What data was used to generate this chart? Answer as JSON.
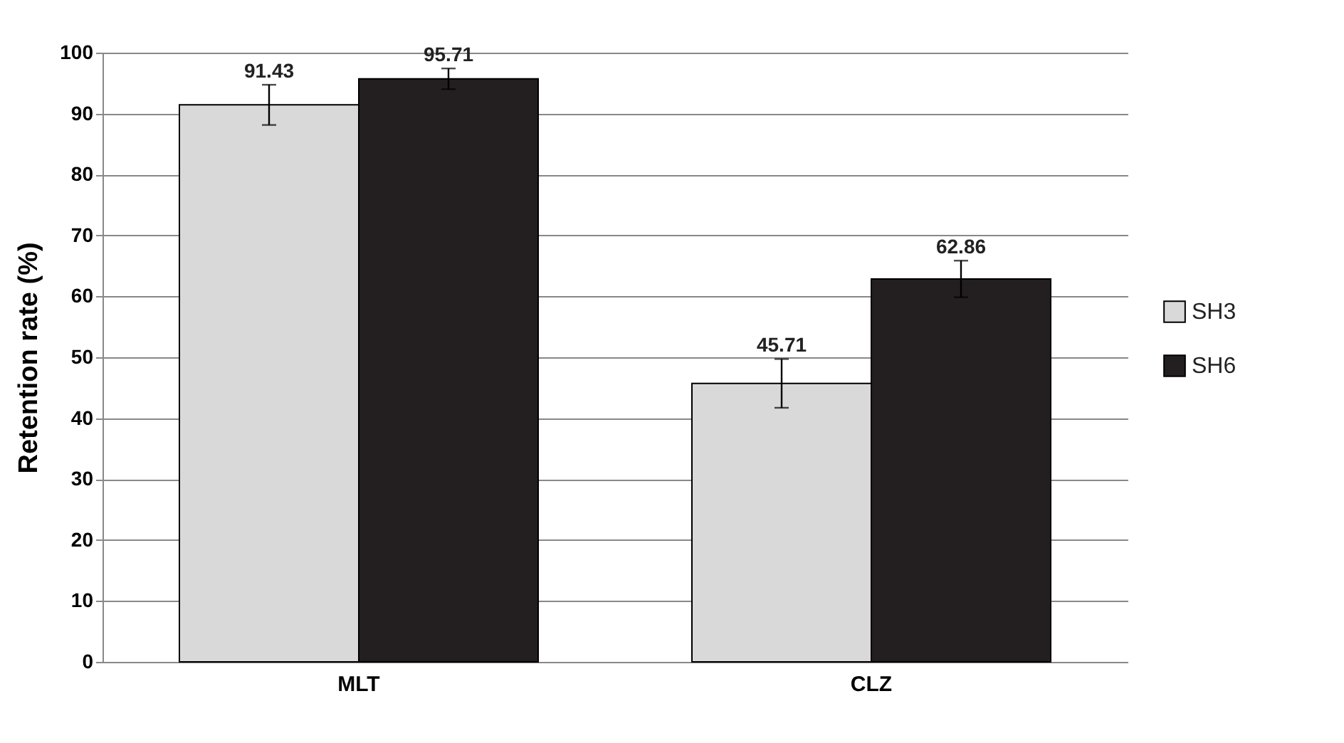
{
  "chart_data": {
    "type": "bar",
    "ylabel": "Retention rate (%)",
    "categories": [
      "MLT",
      "CLZ"
    ],
    "series": [
      {
        "name": "SH3",
        "color": "#d9d9d9",
        "values": [
          91.43,
          45.71
        ],
        "errors": [
          3.3,
          4
        ]
      },
      {
        "name": "SH6",
        "color": "#231f20",
        "values": [
          95.71,
          62.86
        ],
        "errors": [
          1.7,
          3
        ]
      }
    ],
    "ylim": [
      0,
      100
    ],
    "yticks": [
      0,
      10,
      20,
      30,
      40,
      50,
      60,
      70,
      80,
      90,
      100
    ],
    "grid": "y",
    "legend": "right",
    "data_labels": true
  }
}
